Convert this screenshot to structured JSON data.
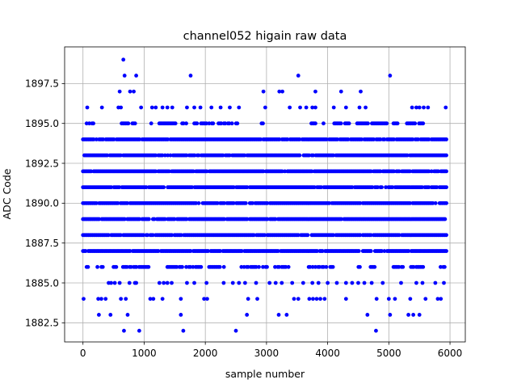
{
  "chart_data": {
    "type": "scatter",
    "title": "channel052 higain raw data",
    "xlabel": "sample number",
    "ylabel": "ADC Code",
    "xlim": [
      -300,
      6250
    ],
    "ylim": [
      1881.3,
      1899.8
    ],
    "xticks": [
      0,
      1000,
      2000,
      3000,
      4000,
      5000,
      6000
    ],
    "xtick_labels": [
      "0",
      "1000",
      "2000",
      "3000",
      "4000",
      "5000",
      "6000"
    ],
    "yticks": [
      1882.5,
      1885.0,
      1887.5,
      1890.0,
      1892.5,
      1895.0,
      1897.5
    ],
    "ytick_labels": [
      "1882.5",
      "1885.0",
      "1887.5",
      "1890.0",
      "1892.5",
      "1895.0",
      "1897.5"
    ],
    "grid": true,
    "marker_color": "#0000ff",
    "sample_count": 5940,
    "dense_levels": [
      1887,
      1888,
      1889,
      1890,
      1891,
      1892,
      1893,
      1894
    ],
    "semi_dense_levels": [
      1886,
      1895
    ],
    "outlier_points": [
      {
        "x": 10,
        "y": 1884
      },
      {
        "x": 250,
        "y": 1884
      },
      {
        "x": 300,
        "y": 1884
      },
      {
        "x": 370,
        "y": 1884
      },
      {
        "x": 620,
        "y": 1884
      },
      {
        "x": 700,
        "y": 1884
      },
      {
        "x": 1100,
        "y": 1884
      },
      {
        "x": 1150,
        "y": 1884
      },
      {
        "x": 1300,
        "y": 1884
      },
      {
        "x": 1600,
        "y": 1884
      },
      {
        "x": 1980,
        "y": 1884
      },
      {
        "x": 2030,
        "y": 1884
      },
      {
        "x": 2700,
        "y": 1884
      },
      {
        "x": 2850,
        "y": 1884
      },
      {
        "x": 3450,
        "y": 1884
      },
      {
        "x": 3520,
        "y": 1884
      },
      {
        "x": 3700,
        "y": 1884
      },
      {
        "x": 3760,
        "y": 1884
      },
      {
        "x": 3820,
        "y": 1884
      },
      {
        "x": 3880,
        "y": 1884
      },
      {
        "x": 3950,
        "y": 1884
      },
      {
        "x": 4300,
        "y": 1884
      },
      {
        "x": 4800,
        "y": 1884
      },
      {
        "x": 5000,
        "y": 1884
      },
      {
        "x": 5100,
        "y": 1884
      },
      {
        "x": 5350,
        "y": 1884
      },
      {
        "x": 5600,
        "y": 1884
      },
      {
        "x": 5800,
        "y": 1884
      },
      {
        "x": 5850,
        "y": 1884
      },
      {
        "x": 260,
        "y": 1883
      },
      {
        "x": 450,
        "y": 1883
      },
      {
        "x": 730,
        "y": 1883
      },
      {
        "x": 1600,
        "y": 1883
      },
      {
        "x": 2680,
        "y": 1883
      },
      {
        "x": 3200,
        "y": 1883
      },
      {
        "x": 3330,
        "y": 1883
      },
      {
        "x": 4650,
        "y": 1883
      },
      {
        "x": 5020,
        "y": 1883
      },
      {
        "x": 5320,
        "y": 1883
      },
      {
        "x": 5400,
        "y": 1883
      },
      {
        "x": 5500,
        "y": 1883
      },
      {
        "x": 670,
        "y": 1882
      },
      {
        "x": 920,
        "y": 1882
      },
      {
        "x": 1640,
        "y": 1882
      },
      {
        "x": 2500,
        "y": 1882
      },
      {
        "x": 4790,
        "y": 1882
      },
      {
        "x": 420,
        "y": 1885
      },
      {
        "x": 460,
        "y": 1885
      },
      {
        "x": 520,
        "y": 1885
      },
      {
        "x": 600,
        "y": 1885
      },
      {
        "x": 760,
        "y": 1885
      },
      {
        "x": 850,
        "y": 1885
      },
      {
        "x": 870,
        "y": 1885
      },
      {
        "x": 1250,
        "y": 1885
      },
      {
        "x": 1320,
        "y": 1885
      },
      {
        "x": 1380,
        "y": 1885
      },
      {
        "x": 1450,
        "y": 1885
      },
      {
        "x": 1700,
        "y": 1885
      },
      {
        "x": 1820,
        "y": 1885
      },
      {
        "x": 2020,
        "y": 1885
      },
      {
        "x": 2300,
        "y": 1885
      },
      {
        "x": 2450,
        "y": 1885
      },
      {
        "x": 2550,
        "y": 1885
      },
      {
        "x": 2650,
        "y": 1885
      },
      {
        "x": 2830,
        "y": 1885
      },
      {
        "x": 3050,
        "y": 1885
      },
      {
        "x": 3150,
        "y": 1885
      },
      {
        "x": 3250,
        "y": 1885
      },
      {
        "x": 3420,
        "y": 1885
      },
      {
        "x": 3600,
        "y": 1885
      },
      {
        "x": 3750,
        "y": 1885
      },
      {
        "x": 3850,
        "y": 1885
      },
      {
        "x": 4000,
        "y": 1885
      },
      {
        "x": 4150,
        "y": 1885
      },
      {
        "x": 4300,
        "y": 1885
      },
      {
        "x": 4400,
        "y": 1885
      },
      {
        "x": 4500,
        "y": 1885
      },
      {
        "x": 4600,
        "y": 1885
      },
      {
        "x": 4720,
        "y": 1885
      },
      {
        "x": 4900,
        "y": 1885
      },
      {
        "x": 5200,
        "y": 1885
      },
      {
        "x": 5450,
        "y": 1885
      },
      {
        "x": 5550,
        "y": 1885
      },
      {
        "x": 5760,
        "y": 1885
      },
      {
        "x": 5900,
        "y": 1885
      },
      {
        "x": 70,
        "y": 1896
      },
      {
        "x": 310,
        "y": 1896
      },
      {
        "x": 580,
        "y": 1896
      },
      {
        "x": 620,
        "y": 1896
      },
      {
        "x": 950,
        "y": 1896
      },
      {
        "x": 1130,
        "y": 1896
      },
      {
        "x": 1190,
        "y": 1896
      },
      {
        "x": 1300,
        "y": 1896
      },
      {
        "x": 1380,
        "y": 1896
      },
      {
        "x": 1460,
        "y": 1896
      },
      {
        "x": 1700,
        "y": 1896
      },
      {
        "x": 1820,
        "y": 1896
      },
      {
        "x": 1920,
        "y": 1896
      },
      {
        "x": 2100,
        "y": 1896
      },
      {
        "x": 2250,
        "y": 1896
      },
      {
        "x": 2400,
        "y": 1896
      },
      {
        "x": 2550,
        "y": 1896
      },
      {
        "x": 2980,
        "y": 1896
      },
      {
        "x": 3380,
        "y": 1896
      },
      {
        "x": 3550,
        "y": 1896
      },
      {
        "x": 3650,
        "y": 1896
      },
      {
        "x": 3750,
        "y": 1896
      },
      {
        "x": 3800,
        "y": 1896
      },
      {
        "x": 4100,
        "y": 1896
      },
      {
        "x": 4300,
        "y": 1896
      },
      {
        "x": 4520,
        "y": 1896
      },
      {
        "x": 4620,
        "y": 1896
      },
      {
        "x": 5380,
        "y": 1896
      },
      {
        "x": 5450,
        "y": 1896
      },
      {
        "x": 5500,
        "y": 1896
      },
      {
        "x": 5570,
        "y": 1896
      },
      {
        "x": 5640,
        "y": 1896
      },
      {
        "x": 5930,
        "y": 1896
      },
      {
        "x": 600,
        "y": 1897
      },
      {
        "x": 770,
        "y": 1897
      },
      {
        "x": 830,
        "y": 1897
      },
      {
        "x": 2950,
        "y": 1897
      },
      {
        "x": 3210,
        "y": 1897
      },
      {
        "x": 3260,
        "y": 1897
      },
      {
        "x": 3800,
        "y": 1897
      },
      {
        "x": 4220,
        "y": 1897
      },
      {
        "x": 4540,
        "y": 1897
      },
      {
        "x": 680,
        "y": 1898
      },
      {
        "x": 870,
        "y": 1898
      },
      {
        "x": 1760,
        "y": 1898
      },
      {
        "x": 3520,
        "y": 1898
      },
      {
        "x": 5020,
        "y": 1898
      },
      {
        "x": 660,
        "y": 1899
      }
    ]
  }
}
